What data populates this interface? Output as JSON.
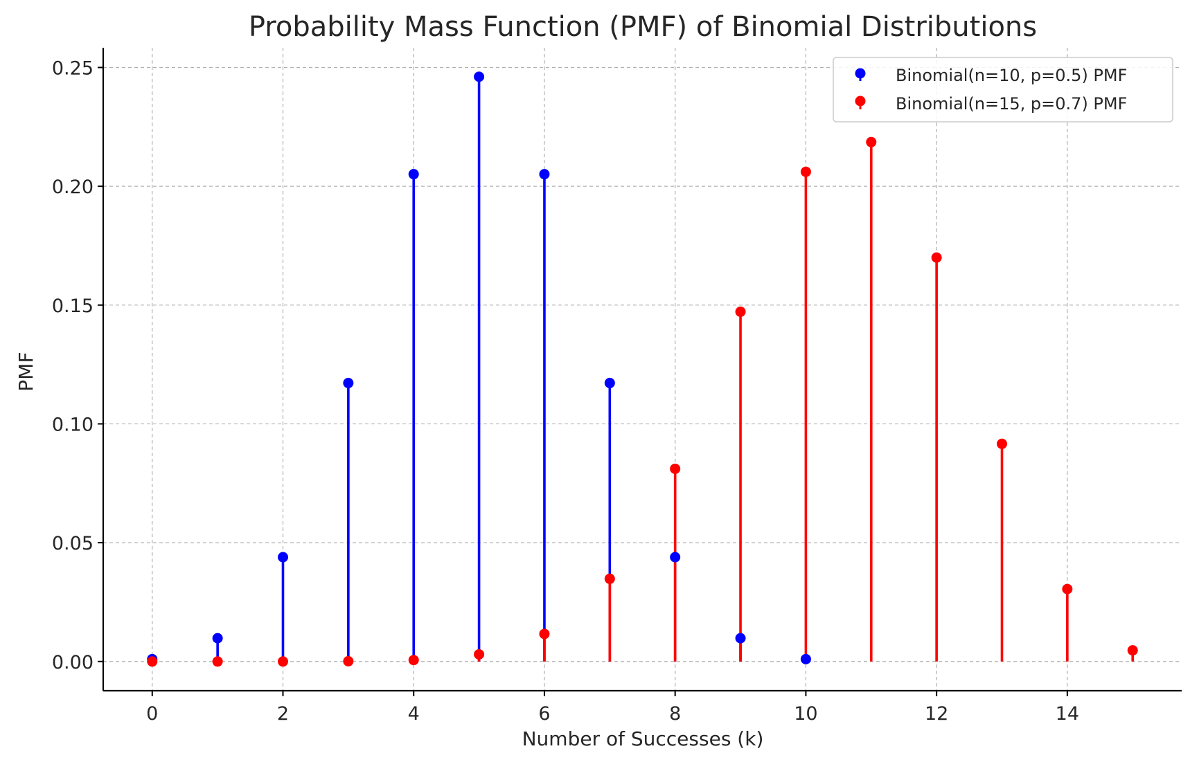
{
  "chart_data": {
    "type": "stem",
    "title": "Probability Mass Function (PMF) of Binomial Distributions",
    "xlabel": "Number of Successes (k)",
    "ylabel": "PMF",
    "xlim": [
      -0.75,
      15.75
    ],
    "ylim": [
      -0.0123,
      0.2583
    ],
    "xticks": [
      0,
      2,
      4,
      6,
      8,
      10,
      12,
      14
    ],
    "yticks": [
      0.0,
      0.05,
      0.1,
      0.15,
      0.2,
      0.25
    ],
    "ytick_labels": [
      "0.00",
      "0.05",
      "0.10",
      "0.15",
      "0.20",
      "0.25"
    ],
    "grid": true,
    "legend_position": "top-right",
    "series": [
      {
        "name": "Binomial(n=10, p=0.5) PMF",
        "color": "#0000ff",
        "x": [
          0,
          1,
          2,
          3,
          4,
          5,
          6,
          7,
          8,
          9,
          10
        ],
        "values": [
          0.001,
          0.0098,
          0.0439,
          0.1172,
          0.2051,
          0.2461,
          0.2051,
          0.1172,
          0.0439,
          0.0098,
          0.001
        ]
      },
      {
        "name": "Binomial(n=15, p=0.7) PMF",
        "color": "#ff0000",
        "x": [
          0,
          1,
          2,
          3,
          4,
          5,
          6,
          7,
          8,
          9,
          10,
          11,
          12,
          13,
          14,
          15
        ],
        "values": [
          0.0,
          0.0,
          0.0,
          0.0001,
          0.0006,
          0.003,
          0.0116,
          0.0348,
          0.0811,
          0.1472,
          0.2061,
          0.2186,
          0.17,
          0.0916,
          0.0305,
          0.0047
        ]
      }
    ]
  }
}
